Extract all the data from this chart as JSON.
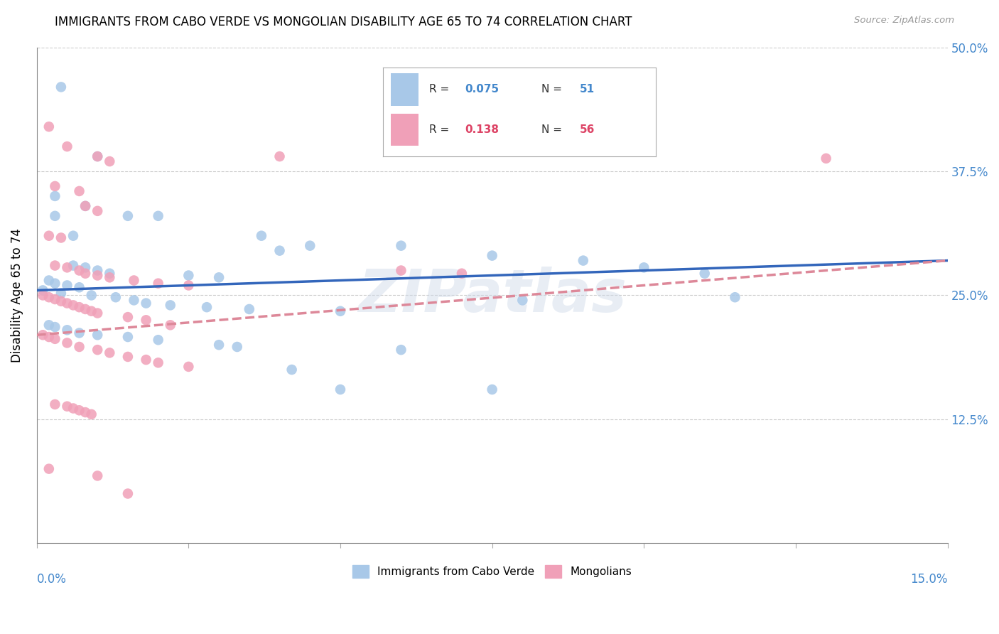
{
  "title": "IMMIGRANTS FROM CABO VERDE VS MONGOLIAN DISABILITY AGE 65 TO 74 CORRELATION CHART",
  "source": "Source: ZipAtlas.com",
  "ylabel": "Disability Age 65 to 74",
  "legend1_label": "Immigrants from Cabo Verde",
  "legend2_label": "Mongolians",
  "R1": "0.075",
  "N1": "51",
  "R2": "0.138",
  "N2": "56",
  "color_blue": "#a8c8e8",
  "color_pink": "#f0a0b8",
  "color_blue_text": "#4488cc",
  "color_pink_text": "#dd4466",
  "color_line_blue": "#3366bb",
  "color_line_pink": "#dd8899",
  "watermark": "ZIPatlas",
  "cabo_verde_points": [
    [
      0.004,
      0.46
    ],
    [
      0.01,
      0.39
    ],
    [
      0.003,
      0.35
    ],
    [
      0.008,
      0.34
    ],
    [
      0.003,
      0.33
    ],
    [
      0.015,
      0.33
    ],
    [
      0.02,
      0.33
    ],
    [
      0.006,
      0.31
    ],
    [
      0.037,
      0.31
    ],
    [
      0.045,
      0.3
    ],
    [
      0.06,
      0.3
    ],
    [
      0.04,
      0.295
    ],
    [
      0.075,
      0.29
    ],
    [
      0.09,
      0.285
    ],
    [
      0.006,
      0.28
    ],
    [
      0.008,
      0.278
    ],
    [
      0.01,
      0.275
    ],
    [
      0.012,
      0.272
    ],
    [
      0.025,
      0.27
    ],
    [
      0.03,
      0.268
    ],
    [
      0.002,
      0.265
    ],
    [
      0.003,
      0.262
    ],
    [
      0.005,
      0.26
    ],
    [
      0.007,
      0.258
    ],
    [
      0.1,
      0.278
    ],
    [
      0.11,
      0.272
    ],
    [
      0.001,
      0.255
    ],
    [
      0.004,
      0.252
    ],
    [
      0.009,
      0.25
    ],
    [
      0.013,
      0.248
    ],
    [
      0.016,
      0.245
    ],
    [
      0.018,
      0.242
    ],
    [
      0.022,
      0.24
    ],
    [
      0.028,
      0.238
    ],
    [
      0.035,
      0.236
    ],
    [
      0.05,
      0.234
    ],
    [
      0.002,
      0.22
    ],
    [
      0.003,
      0.218
    ],
    [
      0.005,
      0.215
    ],
    [
      0.007,
      0.212
    ],
    [
      0.01,
      0.21
    ],
    [
      0.015,
      0.208
    ],
    [
      0.02,
      0.205
    ],
    [
      0.03,
      0.2
    ],
    [
      0.033,
      0.198
    ],
    [
      0.06,
      0.195
    ],
    [
      0.042,
      0.175
    ],
    [
      0.05,
      0.155
    ],
    [
      0.075,
      0.155
    ],
    [
      0.08,
      0.245
    ],
    [
      0.115,
      0.248
    ]
  ],
  "mongolian_points": [
    [
      0.002,
      0.42
    ],
    [
      0.005,
      0.4
    ],
    [
      0.01,
      0.39
    ],
    [
      0.012,
      0.385
    ],
    [
      0.04,
      0.39
    ],
    [
      0.003,
      0.36
    ],
    [
      0.007,
      0.355
    ],
    [
      0.008,
      0.34
    ],
    [
      0.01,
      0.335
    ],
    [
      0.002,
      0.31
    ],
    [
      0.004,
      0.308
    ],
    [
      0.13,
      0.388
    ],
    [
      0.003,
      0.28
    ],
    [
      0.005,
      0.278
    ],
    [
      0.007,
      0.275
    ],
    [
      0.008,
      0.272
    ],
    [
      0.01,
      0.27
    ],
    [
      0.012,
      0.268
    ],
    [
      0.016,
      0.265
    ],
    [
      0.02,
      0.262
    ],
    [
      0.025,
      0.26
    ],
    [
      0.06,
      0.275
    ],
    [
      0.07,
      0.272
    ],
    [
      0.001,
      0.25
    ],
    [
      0.002,
      0.248
    ],
    [
      0.003,
      0.246
    ],
    [
      0.004,
      0.244
    ],
    [
      0.005,
      0.242
    ],
    [
      0.006,
      0.24
    ],
    [
      0.007,
      0.238
    ],
    [
      0.008,
      0.236
    ],
    [
      0.009,
      0.234
    ],
    [
      0.01,
      0.232
    ],
    [
      0.015,
      0.228
    ],
    [
      0.018,
      0.225
    ],
    [
      0.022,
      0.22
    ],
    [
      0.001,
      0.21
    ],
    [
      0.002,
      0.208
    ],
    [
      0.003,
      0.206
    ],
    [
      0.005,
      0.202
    ],
    [
      0.007,
      0.198
    ],
    [
      0.01,
      0.195
    ],
    [
      0.012,
      0.192
    ],
    [
      0.015,
      0.188
    ],
    [
      0.018,
      0.185
    ],
    [
      0.02,
      0.182
    ],
    [
      0.025,
      0.178
    ],
    [
      0.003,
      0.14
    ],
    [
      0.005,
      0.138
    ],
    [
      0.006,
      0.136
    ],
    [
      0.007,
      0.134
    ],
    [
      0.008,
      0.132
    ],
    [
      0.009,
      0.13
    ],
    [
      0.002,
      0.075
    ],
    [
      0.01,
      0.068
    ],
    [
      0.015,
      0.05
    ]
  ]
}
